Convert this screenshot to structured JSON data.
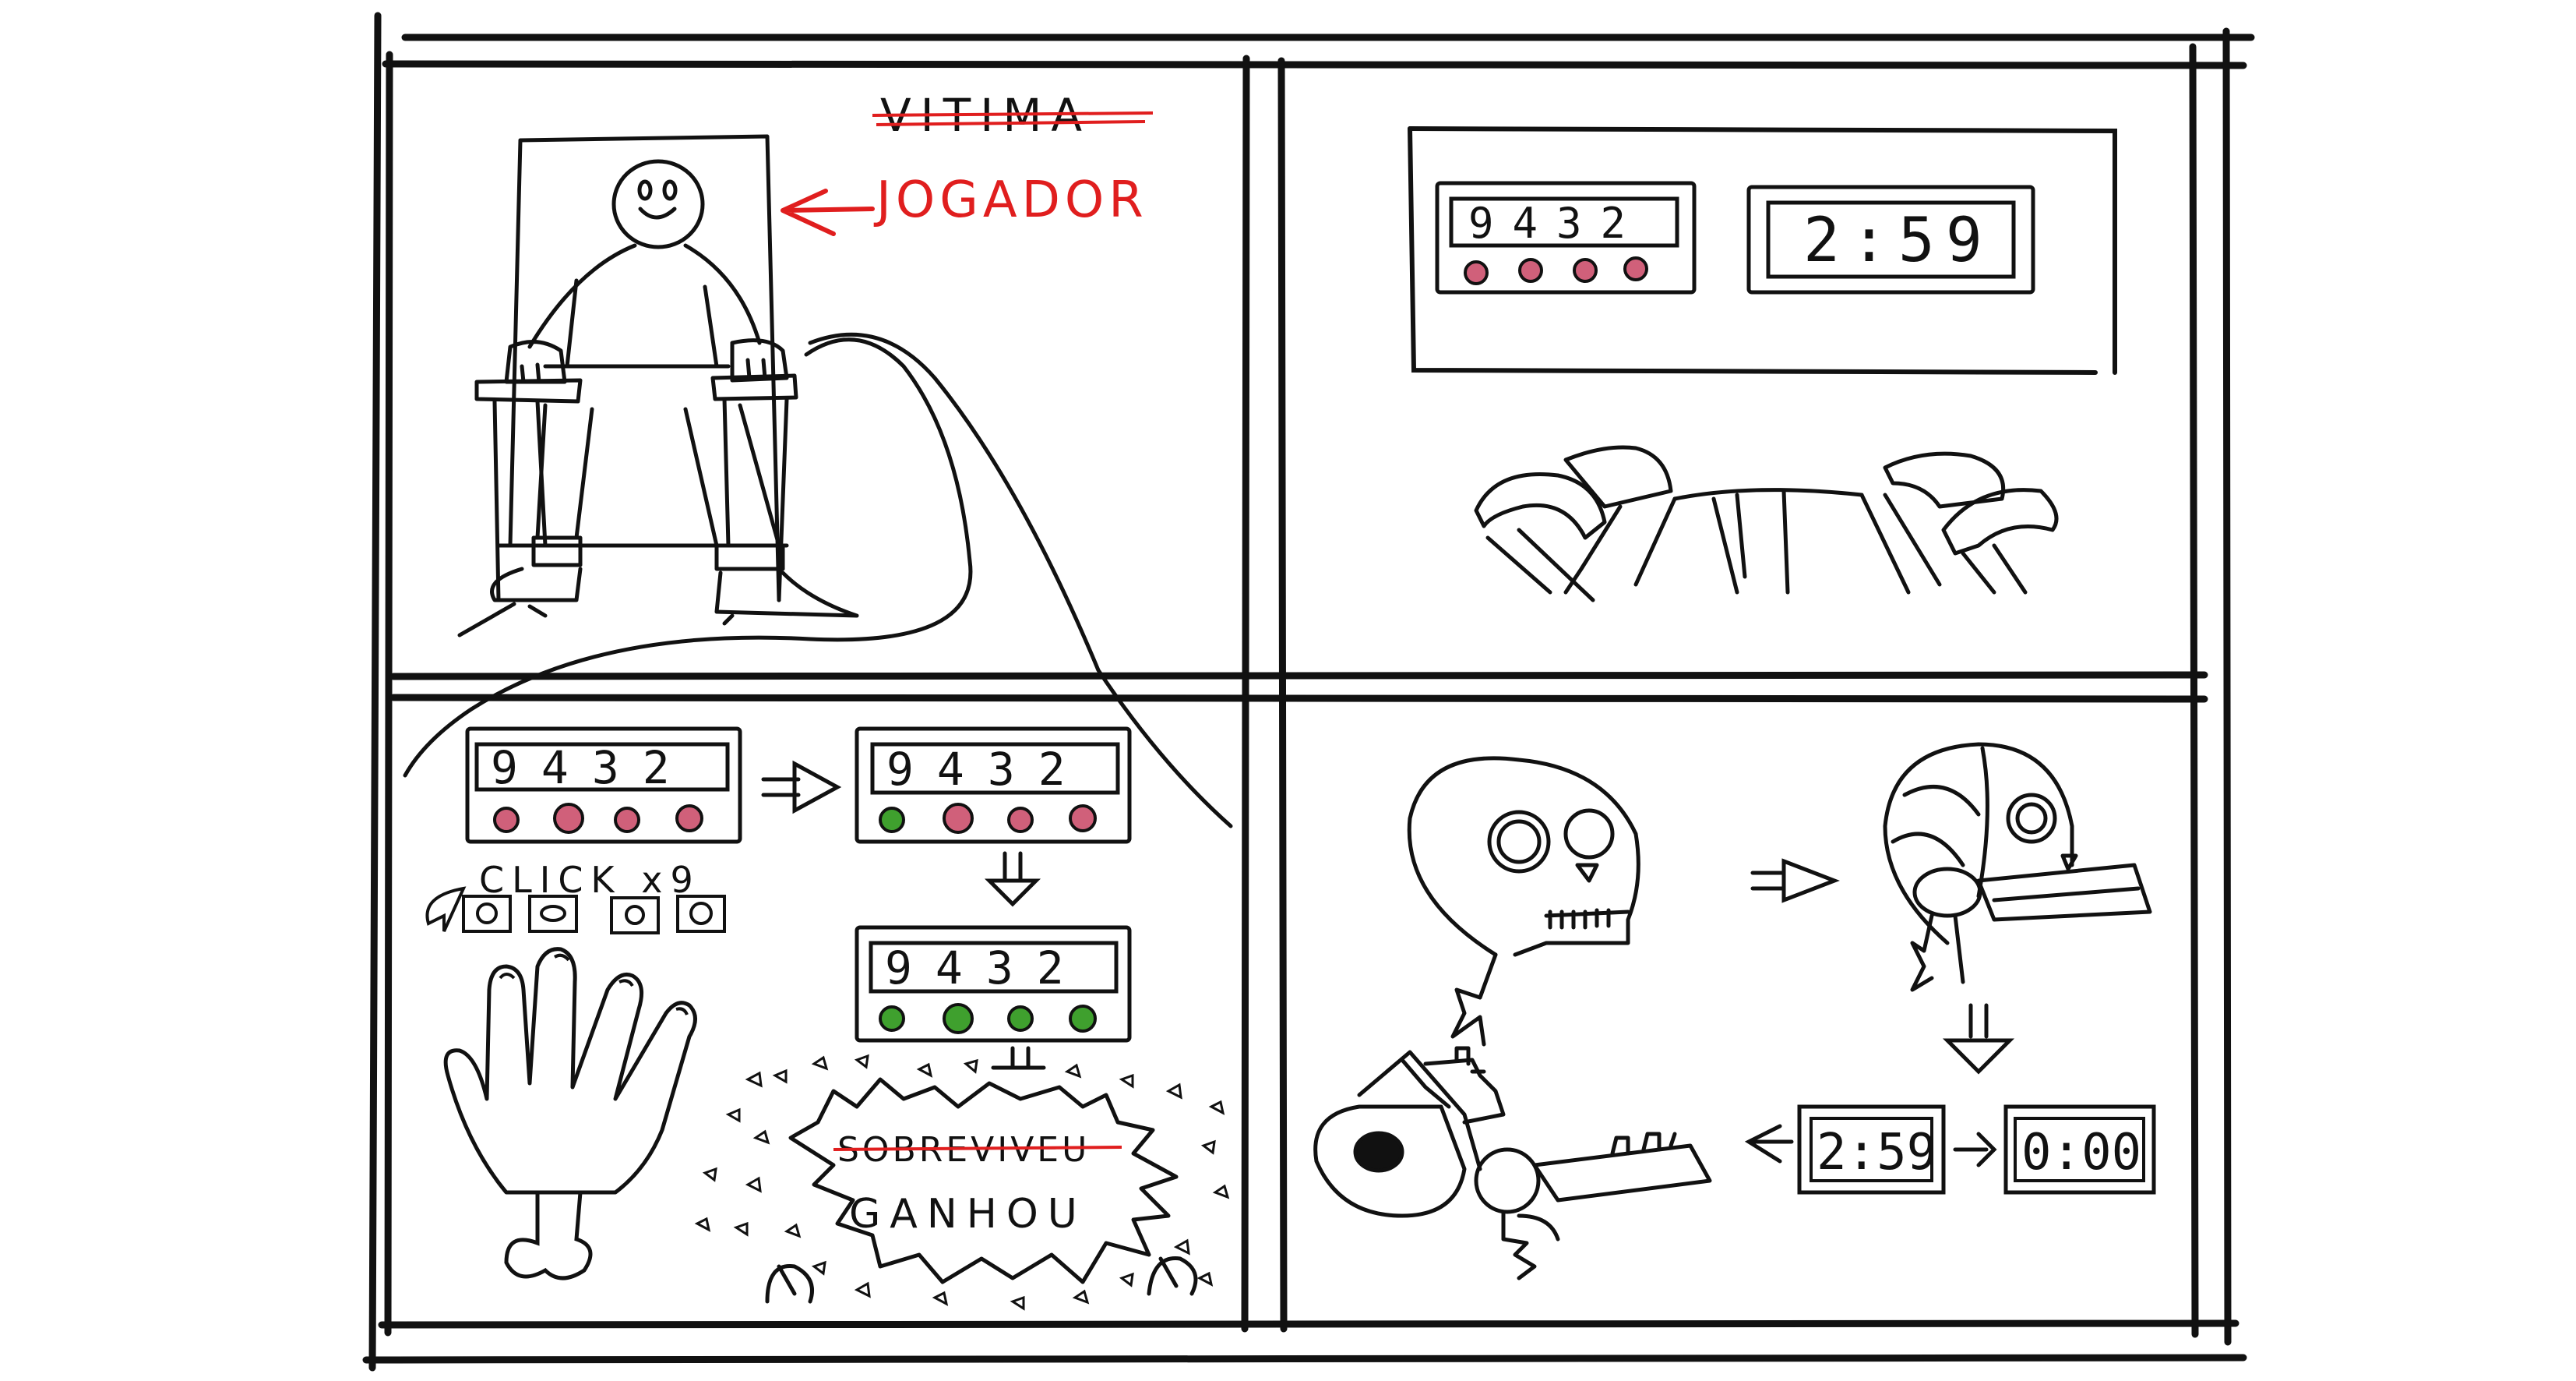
{
  "colors": {
    "ink": "#111111",
    "annotation_red": "#e01e1e",
    "led_red": "#c24a5a",
    "led_pink": "#d0607a",
    "led_green": "#3fa02e"
  },
  "panel1": {
    "crossed_word": "VITIMA",
    "player_label": "JOGADOR"
  },
  "panel2": {
    "keypad_code": "9432",
    "timer": "2:59"
  },
  "panel3": {
    "code": "9432",
    "click_label": "CLICK x9",
    "crossed_word": "SOBREVIVEU",
    "won_word": "GANHOU"
  },
  "panel4": {
    "timer_start": "2:59",
    "timer_end": "0:00"
  },
  "icons": [
    "skull-icon",
    "hand-icon",
    "chair-icon",
    "wire-icon",
    "cursor-icon",
    "arrow-icon"
  ]
}
